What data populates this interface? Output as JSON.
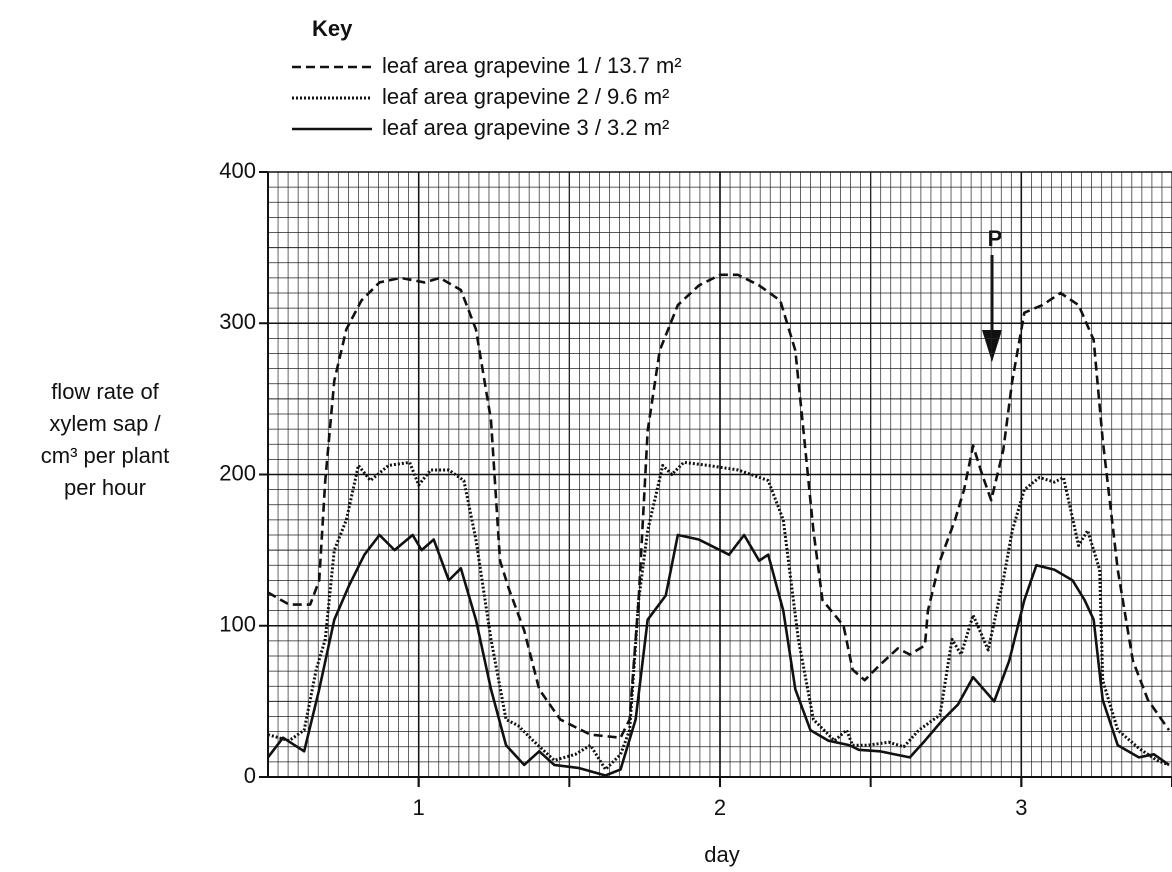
{
  "chart_data": {
    "type": "line",
    "legend_title": "Key",
    "xlabel": "day",
    "ylabel": [
      "flow rate of",
      "xylem sap /",
      "cm³ per plant",
      "per hour"
    ],
    "annotation": "P",
    "xlim": [
      0.5,
      3.5
    ],
    "xticks": [
      1,
      2,
      3
    ],
    "ylim": [
      0,
      400
    ],
    "yticks": [
      0,
      100,
      200,
      300,
      400
    ],
    "grid": true,
    "series": [
      {
        "name": "leaf area grapevine 1 / 13.7 m²",
        "color": "#111111",
        "linestyle": "dashed",
        "x": [
          0.5,
          0.57,
          0.64,
          0.67,
          0.69,
          0.72,
          0.76,
          0.81,
          0.87,
          0.94,
          1.02,
          1.07,
          1.14,
          1.19,
          1.24,
          1.27,
          1.3,
          1.35,
          1.4,
          1.47,
          1.57,
          1.67,
          1.7,
          1.73,
          1.76,
          1.8,
          1.86,
          1.93,
          2.0,
          2.06,
          2.13,
          2.2,
          2.25,
          2.28,
          2.31,
          2.34,
          2.41,
          2.44,
          2.48,
          2.53,
          2.59,
          2.63,
          2.68,
          2.69,
          2.73,
          2.78,
          2.81,
          2.84,
          2.87,
          2.9,
          2.94,
          2.97,
          3.01,
          3.07,
          3.13,
          3.19,
          3.24,
          3.27,
          3.32,
          3.37,
          3.42,
          3.49
        ],
        "values": [
          122,
          114,
          114,
          130,
          196,
          262,
          296,
          315,
          327,
          330,
          327,
          330,
          322,
          296,
          236,
          143,
          124,
          97,
          58,
          38,
          28,
          26,
          38,
          117,
          229,
          282,
          312,
          325,
          332,
          332,
          325,
          315,
          282,
          223,
          163,
          117,
          100,
          71,
          64,
          74,
          85,
          81,
          87,
          110,
          143,
          170,
          190,
          219,
          200,
          183,
          216,
          262,
          307,
          312,
          320,
          312,
          289,
          223,
          137,
          77,
          51,
          31
        ]
      },
      {
        "name": "leaf area grapevine 2 / 9.6 m²",
        "color": "#111111",
        "linestyle": "dotted",
        "x": [
          0.5,
          0.57,
          0.62,
          0.66,
          0.69,
          0.72,
          0.76,
          0.8,
          0.84,
          0.9,
          0.97,
          1.0,
          1.04,
          1.1,
          1.15,
          1.19,
          1.24,
          1.29,
          1.33,
          1.38,
          1.45,
          1.52,
          1.57,
          1.62,
          1.67,
          1.7,
          1.73,
          1.76,
          1.81,
          1.84,
          1.88,
          1.96,
          2.06,
          2.16,
          2.21,
          2.26,
          2.31,
          2.38,
          2.42,
          2.44,
          2.49,
          2.56,
          2.61,
          2.66,
          2.73,
          2.77,
          2.8,
          2.84,
          2.89,
          2.94,
          2.97,
          3.01,
          3.06,
          3.11,
          3.14,
          3.19,
          3.22,
          3.26,
          3.27,
          3.32,
          3.39,
          3.45,
          3.49
        ],
        "values": [
          28,
          24,
          31,
          71,
          91,
          150,
          170,
          206,
          196,
          206,
          208,
          193,
          203,
          203,
          196,
          157,
          91,
          38,
          34,
          24,
          11,
          15,
          21,
          5,
          15,
          31,
          117,
          163,
          206,
          200,
          208,
          206,
          203,
          196,
          170,
          91,
          38,
          24,
          31,
          21,
          21,
          23,
          20,
          31,
          41,
          91,
          81,
          107,
          84,
          130,
          163,
          190,
          198,
          195,
          198,
          153,
          163,
          137,
          64,
          31,
          19,
          11,
          8
        ]
      },
      {
        "name": "leaf area grapevine 3 / 3.2 m²",
        "color": "#111111",
        "linestyle": "solid",
        "x": [
          0.5,
          0.55,
          0.62,
          0.67,
          0.72,
          0.77,
          0.82,
          0.87,
          0.92,
          0.98,
          1.01,
          1.05,
          1.1,
          1.14,
          1.19,
          1.24,
          1.29,
          1.35,
          1.4,
          1.45,
          1.53,
          1.62,
          1.67,
          1.72,
          1.76,
          1.82,
          1.86,
          1.93,
          2.03,
          2.08,
          2.13,
          2.16,
          2.21,
          2.25,
          2.3,
          2.36,
          2.43,
          2.46,
          2.53,
          2.63,
          2.68,
          2.74,
          2.79,
          2.84,
          2.91,
          2.96,
          3.01,
          3.05,
          3.11,
          3.17,
          3.21,
          3.24,
          3.27,
          3.32,
          3.39,
          3.44,
          3.49
        ],
        "values": [
          13,
          26,
          17,
          58,
          104,
          127,
          147,
          160,
          150,
          160,
          150,
          157,
          130,
          138,
          104,
          58,
          21,
          8,
          17,
          8,
          6,
          1,
          5,
          38,
          104,
          120,
          160,
          157,
          147,
          160,
          143,
          147,
          110,
          58,
          31,
          24,
          21,
          18,
          17,
          13,
          24,
          38,
          48,
          66,
          50,
          77,
          117,
          140,
          137,
          130,
          117,
          104,
          51,
          21,
          13,
          15,
          8
        ]
      }
    ]
  }
}
